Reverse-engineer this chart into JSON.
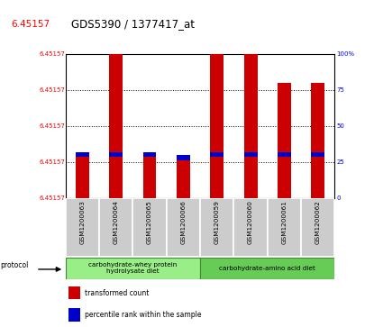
{
  "title": "GDS5390 / 1377417_at",
  "title_red": "6.45157",
  "samples": [
    "GSM1200063",
    "GSM1200064",
    "GSM1200065",
    "GSM1200066",
    "GSM1200059",
    "GSM1200060",
    "GSM1200061",
    "GSM1200062"
  ],
  "bar_heights": [
    30,
    100,
    30,
    28,
    100,
    100,
    80,
    80
  ],
  "blue_positions": [
    30,
    30,
    30,
    28,
    30,
    30,
    30,
    30
  ],
  "right_y_ticks": [
    0,
    25,
    50,
    75,
    100
  ],
  "right_y_labels": [
    "0",
    "25",
    "50",
    "75",
    "100%"
  ],
  "left_y_labels": [
    "6.45157",
    "6.45157",
    "6.45157",
    "6.45157",
    "6.45157"
  ],
  "protocol1_label": "carbohydrate-whey protein\nhydrolysate diet",
  "protocol2_label": "carbohydrate-amino acid diet",
  "protocol1_color": "#99ee88",
  "protocol2_color": "#66cc55",
  "protocol1_samples": 4,
  "protocol2_samples": 4,
  "red_color": "#cc0000",
  "blue_color": "#0000cc",
  "bar_width": 0.4,
  "sample_bg": "#cccccc",
  "legend1": "transformed count",
  "legend2": "percentile rank within the sample"
}
